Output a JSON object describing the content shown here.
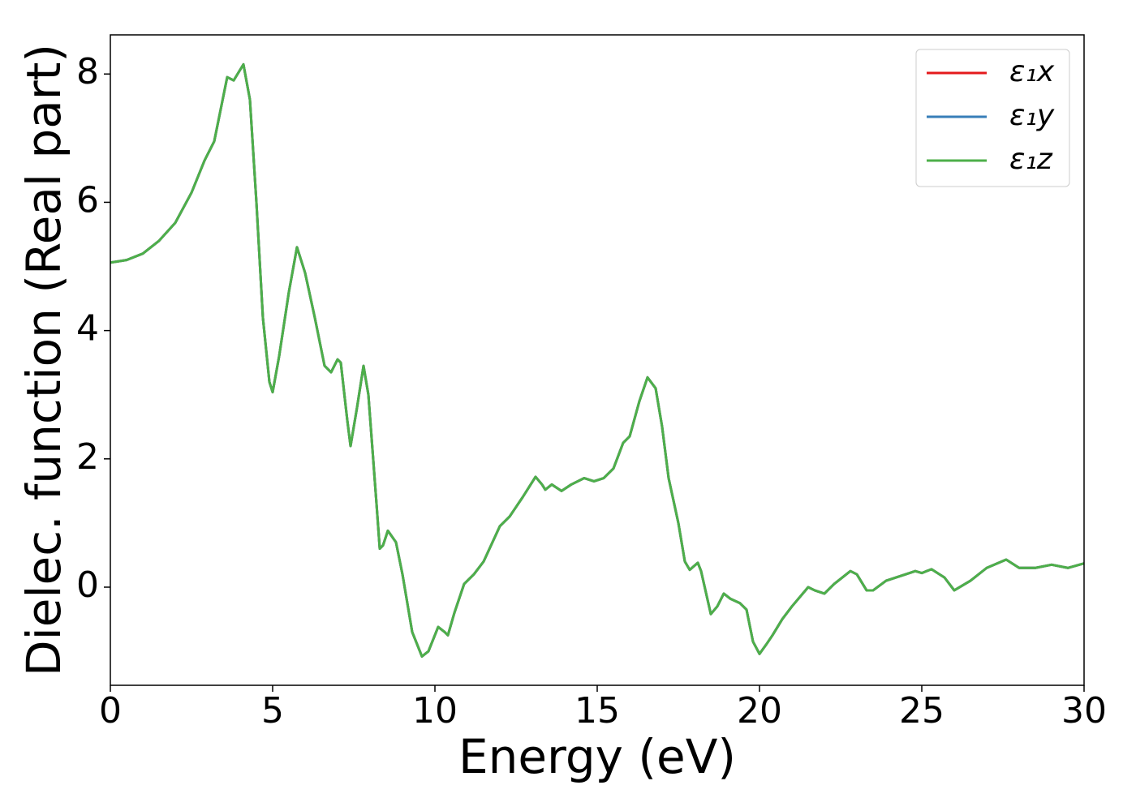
{
  "chart_data": {
    "type": "line",
    "xlabel": "Energy (eV)",
    "ylabel": "Dielec. function (Real part)",
    "xlim": [
      0,
      30
    ],
    "ylim": [
      -1.53,
      8.61
    ],
    "xticks": [
      0,
      5,
      10,
      15,
      20,
      25,
      30
    ],
    "yticks": [
      0,
      2,
      4,
      6,
      8
    ],
    "grid": false,
    "legend": "upper right",
    "x": [
      0,
      0.5,
      1.0,
      1.5,
      2.0,
      2.5,
      2.9,
      3.2,
      3.6,
      3.8,
      4.1,
      4.3,
      4.5,
      4.7,
      4.9,
      5.0,
      5.2,
      5.5,
      5.75,
      6.0,
      6.3,
      6.6,
      6.8,
      7.0,
      7.1,
      7.3,
      7.4,
      7.6,
      7.8,
      7.95,
      8.2,
      8.3,
      8.4,
      8.55,
      8.8,
      9.0,
      9.3,
      9.6,
      9.8,
      10.1,
      10.3,
      10.4,
      10.6,
      10.9,
      11.2,
      11.5,
      12.0,
      12.3,
      12.7,
      13.1,
      13.3,
      13.4,
      13.6,
      13.9,
      14.2,
      14.6,
      14.9,
      15.2,
      15.5,
      15.8,
      16.0,
      16.3,
      16.55,
      16.8,
      17.0,
      17.2,
      17.5,
      17.7,
      17.85,
      18.1,
      18.2,
      18.5,
      18.7,
      18.9,
      19.1,
      19.4,
      19.6,
      19.8,
      20.0,
      20.2,
      20.4,
      20.7,
      21.0,
      21.5,
      21.7,
      22.0,
      22.3,
      22.8,
      23.0,
      23.3,
      23.5,
      23.9,
      24.5,
      24.8,
      25.0,
      25.3,
      25.7,
      26.0,
      26.5,
      27.0,
      27.6,
      28.0,
      28.5,
      29.0,
      29.5,
      30.0
    ],
    "series": [
      {
        "name": "ε₁x",
        "color": "#e41a1c",
        "values": [
          5.06,
          5.1,
          5.2,
          5.4,
          5.68,
          6.15,
          6.65,
          6.95,
          7.95,
          7.9,
          8.15,
          7.6,
          6.0,
          4.2,
          3.2,
          3.04,
          3.6,
          4.6,
          5.3,
          4.9,
          4.2,
          3.45,
          3.35,
          3.55,
          3.5,
          2.6,
          2.2,
          2.8,
          3.45,
          3.0,
          1.3,
          0.6,
          0.65,
          0.88,
          0.7,
          0.2,
          -0.7,
          -1.08,
          -1.0,
          -0.62,
          -0.7,
          -0.75,
          -0.4,
          0.05,
          0.2,
          0.4,
          0.95,
          1.1,
          1.4,
          1.72,
          1.6,
          1.52,
          1.6,
          1.5,
          1.6,
          1.7,
          1.65,
          1.7,
          1.85,
          2.25,
          2.35,
          2.9,
          3.27,
          3.1,
          2.5,
          1.7,
          1.0,
          0.4,
          0.27,
          0.38,
          0.25,
          -0.42,
          -0.3,
          -0.1,
          -0.18,
          -0.25,
          -0.35,
          -0.85,
          -1.04,
          -0.9,
          -0.75,
          -0.5,
          -0.3,
          0.0,
          -0.05,
          -0.1,
          0.05,
          0.25,
          0.2,
          -0.05,
          -0.05,
          0.1,
          0.2,
          0.25,
          0.22,
          0.28,
          0.15,
          -0.05,
          0.1,
          0.3,
          0.43,
          0.3,
          0.3,
          0.35,
          0.3,
          0.37
        ]
      },
      {
        "name": "ε₁y",
        "color": "#377eb8",
        "values": [
          5.06,
          5.1,
          5.2,
          5.4,
          5.68,
          6.15,
          6.65,
          6.95,
          7.95,
          7.9,
          8.15,
          7.6,
          6.0,
          4.2,
          3.2,
          3.04,
          3.6,
          4.6,
          5.3,
          4.9,
          4.2,
          3.45,
          3.35,
          3.55,
          3.5,
          2.6,
          2.2,
          2.8,
          3.45,
          3.0,
          1.3,
          0.6,
          0.65,
          0.88,
          0.7,
          0.2,
          -0.7,
          -1.08,
          -1.0,
          -0.62,
          -0.7,
          -0.75,
          -0.4,
          0.05,
          0.2,
          0.4,
          0.95,
          1.1,
          1.4,
          1.72,
          1.6,
          1.52,
          1.6,
          1.5,
          1.6,
          1.7,
          1.65,
          1.7,
          1.85,
          2.25,
          2.35,
          2.9,
          3.27,
          3.1,
          2.5,
          1.7,
          1.0,
          0.4,
          0.27,
          0.38,
          0.25,
          -0.42,
          -0.3,
          -0.1,
          -0.18,
          -0.25,
          -0.35,
          -0.85,
          -1.04,
          -0.9,
          -0.75,
          -0.5,
          -0.3,
          0.0,
          -0.05,
          -0.1,
          0.05,
          0.25,
          0.2,
          -0.05,
          -0.05,
          0.1,
          0.2,
          0.25,
          0.22,
          0.28,
          0.15,
          -0.05,
          0.1,
          0.3,
          0.43,
          0.3,
          0.3,
          0.35,
          0.3,
          0.37
        ]
      },
      {
        "name": "ε₁z",
        "color": "#4daf4a",
        "values": [
          5.06,
          5.1,
          5.2,
          5.4,
          5.68,
          6.15,
          6.65,
          6.95,
          7.95,
          7.9,
          8.15,
          7.6,
          6.0,
          4.2,
          3.2,
          3.04,
          3.6,
          4.6,
          5.3,
          4.9,
          4.2,
          3.45,
          3.35,
          3.55,
          3.5,
          2.6,
          2.2,
          2.8,
          3.45,
          3.0,
          1.3,
          0.6,
          0.65,
          0.88,
          0.7,
          0.2,
          -0.7,
          -1.08,
          -1.0,
          -0.62,
          -0.7,
          -0.75,
          -0.4,
          0.05,
          0.2,
          0.4,
          0.95,
          1.1,
          1.4,
          1.72,
          1.6,
          1.52,
          1.6,
          1.5,
          1.6,
          1.7,
          1.65,
          1.7,
          1.85,
          2.25,
          2.35,
          2.9,
          3.27,
          3.1,
          2.5,
          1.7,
          1.0,
          0.4,
          0.27,
          0.38,
          0.25,
          -0.42,
          -0.3,
          -0.1,
          -0.18,
          -0.25,
          -0.35,
          -0.85,
          -1.04,
          -0.9,
          -0.75,
          -0.5,
          -0.3,
          0.0,
          -0.05,
          -0.1,
          0.05,
          0.25,
          0.2,
          -0.05,
          -0.05,
          0.1,
          0.2,
          0.25,
          0.22,
          0.28,
          0.15,
          -0.05,
          0.1,
          0.3,
          0.43,
          0.3,
          0.3,
          0.35,
          0.3,
          0.37
        ]
      }
    ]
  }
}
